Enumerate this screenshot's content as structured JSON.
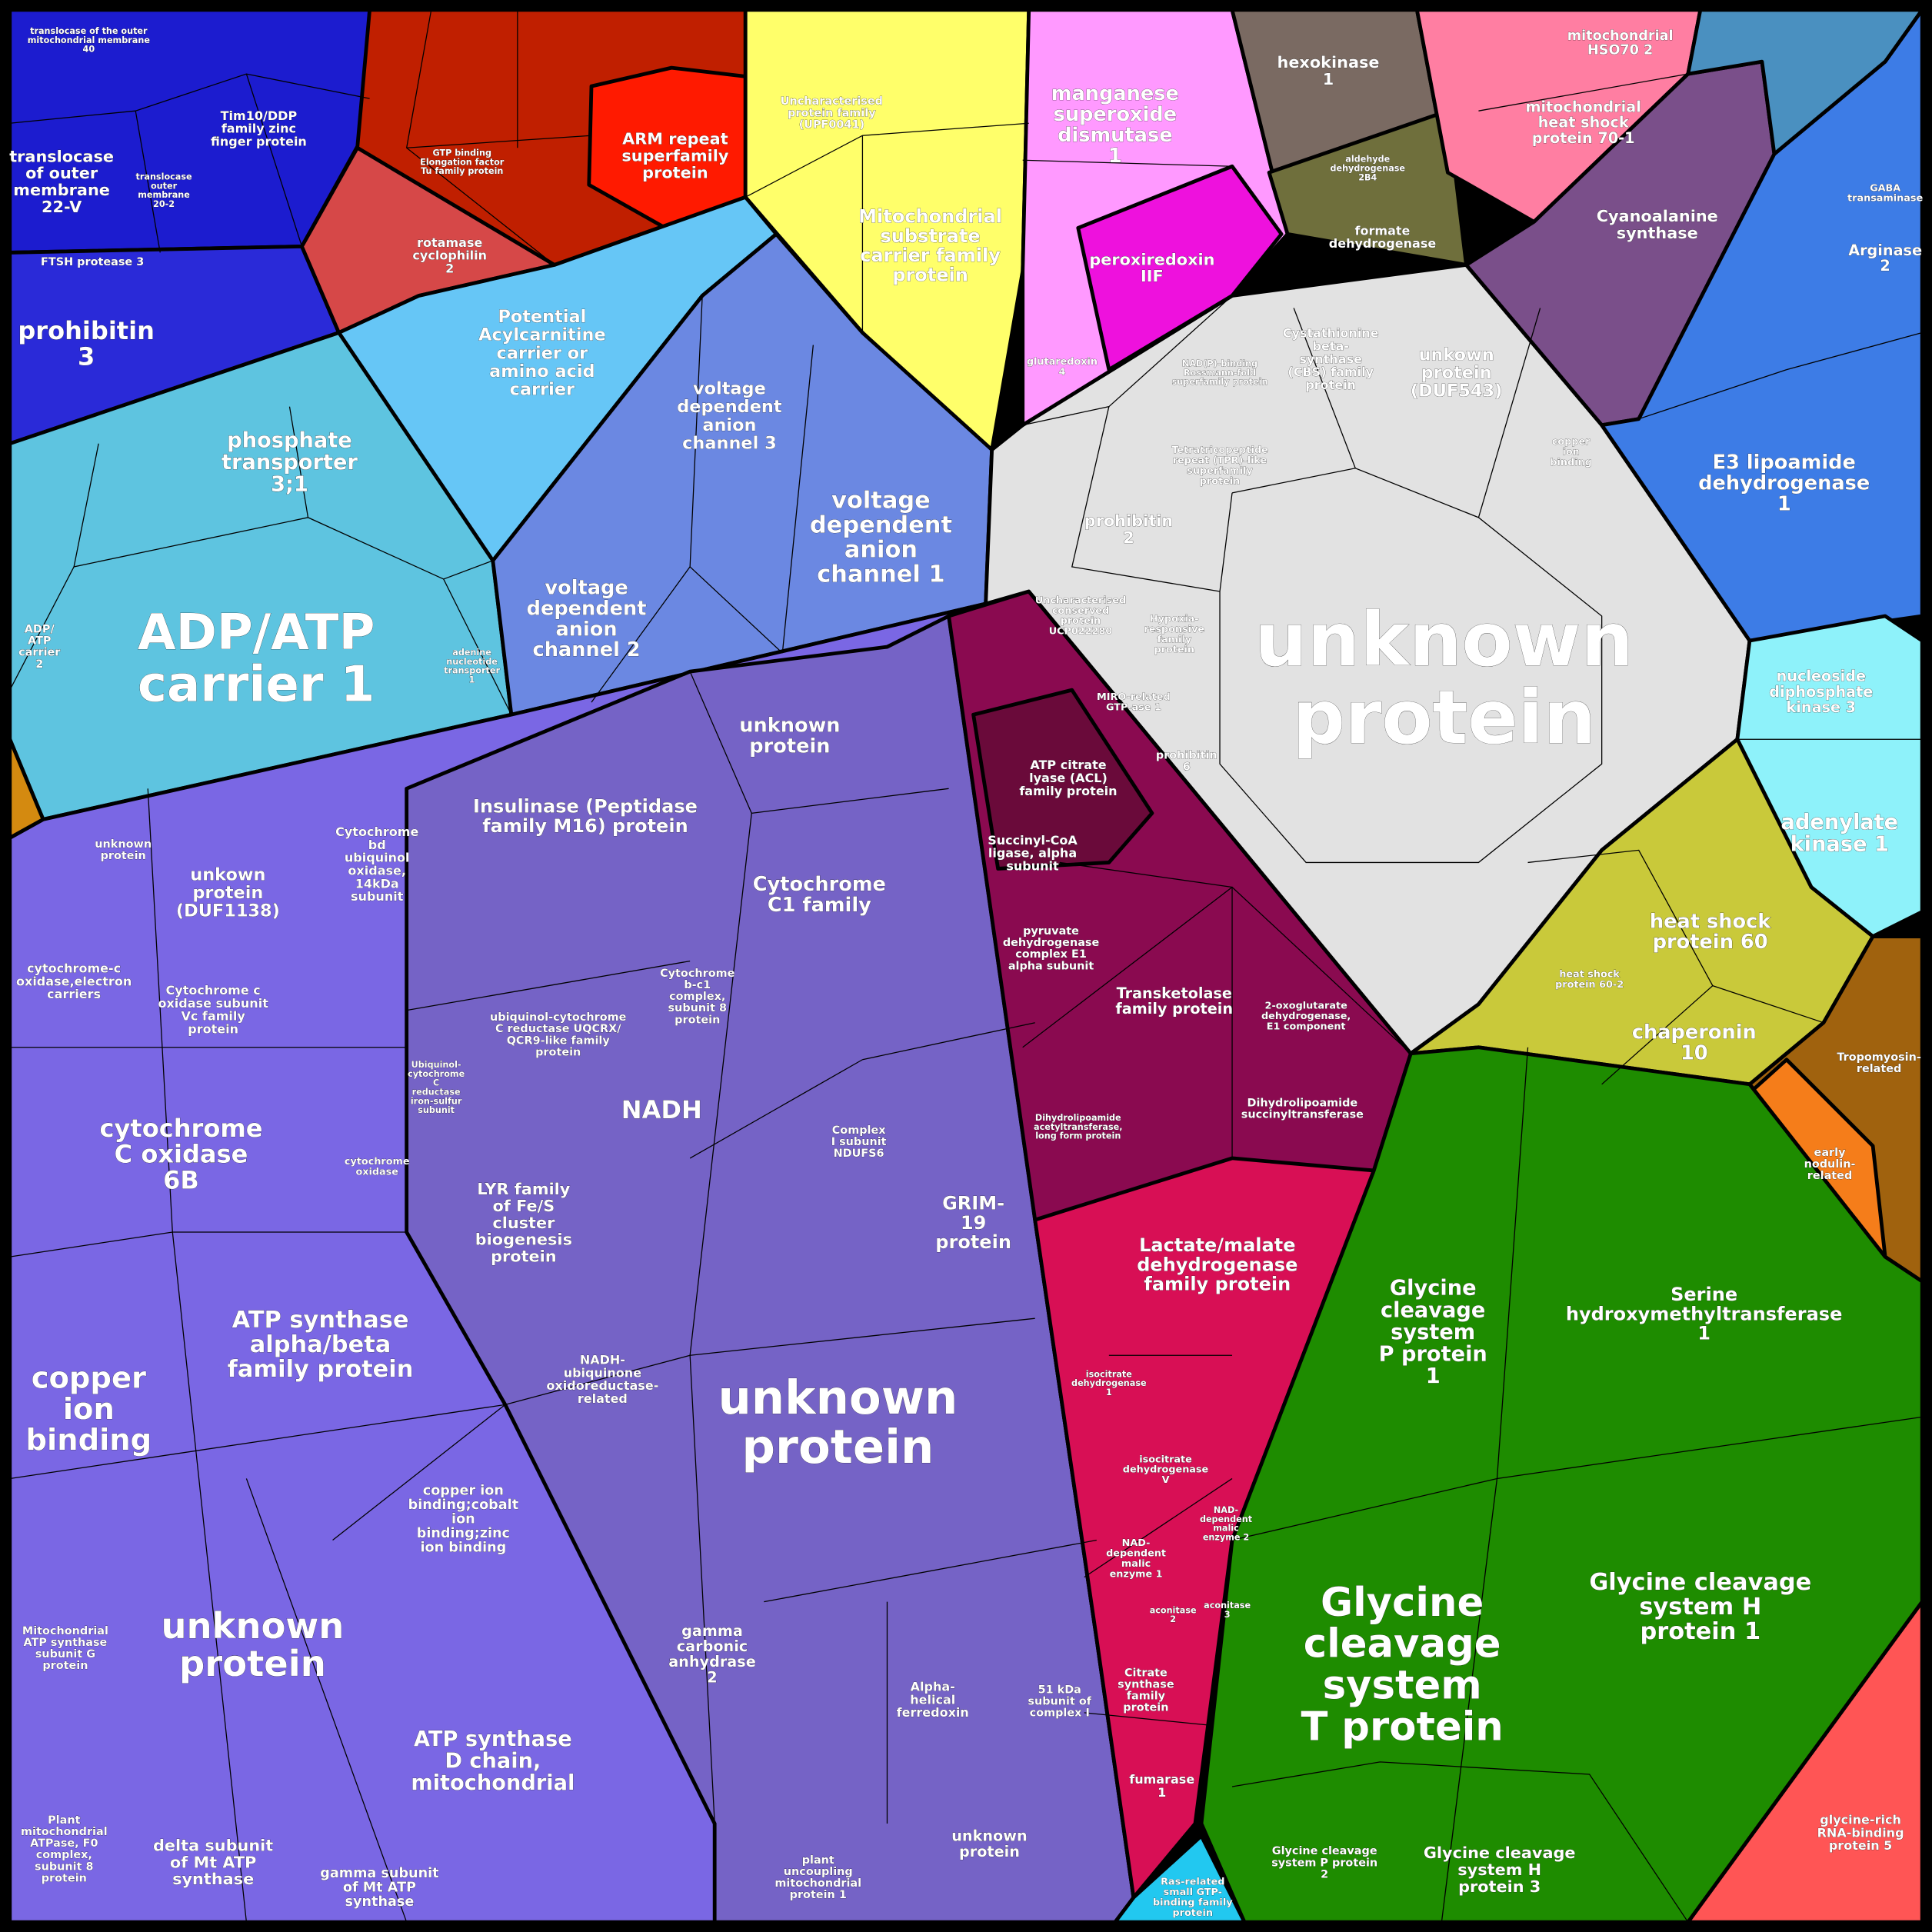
{
  "cells": [
    {
      "label": [
        "translocase",
        "of outer",
        "membrane",
        "22-V"
      ]
    },
    {
      "label": [
        "prohibitin",
        "3"
      ]
    },
    {
      "label": [
        "FTSH protease 3"
      ]
    },
    {
      "label": [
        "Tim10/DDP",
        "family zinc",
        "finger protein"
      ]
    },
    {
      "label": [
        "translocase",
        "outer",
        "membrane",
        "20-2"
      ]
    },
    {
      "label": [
        "translocase of the outer",
        "mitochondrial membrane",
        "40"
      ]
    },
    {
      "label": [
        "ARM repeat",
        "superfamily",
        "protein"
      ]
    },
    {
      "label": [
        "rotamase",
        "cyclophilin",
        "2"
      ]
    },
    {
      "label": [
        "GTP binding",
        "Elongation factor",
        "Tu family protein"
      ]
    },
    {
      "label": [
        "Uncharacterised",
        "protein family",
        "(UPF0041)"
      ]
    },
    {
      "label": [
        "Mitochondrial",
        "substrate",
        "carrier family",
        "protein"
      ]
    },
    {
      "label": [
        "manganese",
        "superoxide",
        "dismutase",
        "1"
      ]
    },
    {
      "label": [
        "peroxiredoxin",
        "IIF"
      ]
    },
    {
      "label": [
        "glutaredoxin",
        "4"
      ]
    },
    {
      "label": [
        "hexokinase",
        "1"
      ]
    },
    {
      "label": [
        "aldehyde",
        "dehydrogenase",
        "2B4"
      ]
    },
    {
      "label": [
        "formate",
        "dehydrogenase"
      ]
    },
    {
      "label": [
        "mitochondrial",
        "HSO70 2"
      ]
    },
    {
      "label": [
        "mitochondrial",
        "heat shock",
        "protein 70-1"
      ]
    },
    {
      "label": [
        "Cyanoalanine",
        "synthase"
      ]
    },
    {
      "label": [
        "Arginase",
        "2"
      ]
    },
    {
      "label": [
        "GABA",
        "transaminase"
      ]
    },
    {
      "label": [
        "E3 lipoamide",
        "dehydrogenase",
        "1"
      ]
    },
    {
      "label": [
        "nucleoside",
        "diphosphate",
        "kinase 3"
      ]
    },
    {
      "label": [
        "adenylate",
        "kinase 1"
      ]
    },
    {
      "label": [
        "heat shock",
        "protein 60"
      ]
    },
    {
      "label": [
        "chaperonin",
        "10"
      ]
    },
    {
      "label": [
        "heat shock",
        "protein 60-2"
      ]
    },
    {
      "label": [
        "Tropomyosin-",
        "related"
      ]
    },
    {
      "label": [
        "early",
        "nodulin-",
        "related"
      ]
    },
    {
      "label": [
        "unknown",
        "protein"
      ]
    },
    {
      "label": [
        "Cystathionine",
        "beta-",
        "synthase",
        "(CBS) family",
        "protein"
      ]
    },
    {
      "label": [
        "unkown",
        "protein",
        "(DUF543)"
      ]
    },
    {
      "label": [
        "prohibitin",
        "2"
      ]
    },
    {
      "label": [
        "Tetratricopeptide",
        "repeat (TPR)-like",
        "superfamily",
        "protein"
      ]
    },
    {
      "label": [
        "Uncharacterised",
        "conserved",
        "protein",
        "UCP022280"
      ]
    },
    {
      "label": [
        "Hypoxia-",
        "responsive",
        "family",
        "protein"
      ]
    },
    {
      "label": [
        "MIRO-related",
        "GTP-ase 1"
      ]
    },
    {
      "label": [
        "prohibitin",
        "6"
      ]
    },
    {
      "label": [
        "NAD(P)-binding",
        "Rossmann-fold",
        "superfamily protein"
      ]
    },
    {
      "label": [
        "copper",
        "ion",
        "binding"
      ]
    },
    {
      "label": [
        "ATP citrate",
        "lyase (ACL)",
        "family protein"
      ]
    },
    {
      "label": [
        "Succinyl-CoA",
        "ligase, alpha",
        "subunit"
      ]
    },
    {
      "label": [
        "pyruvate",
        "dehydrogenase",
        "complex E1",
        "alpha subunit"
      ]
    },
    {
      "label": [
        "Transketolase",
        "family protein"
      ]
    },
    {
      "label": [
        "2-oxoglutarate",
        "dehydrogenase,",
        "E1 component"
      ]
    },
    {
      "label": [
        "Dihydrolipoamide",
        "succinyltransferase"
      ]
    },
    {
      "label": [
        "Dihydrolipoamide",
        "acetyltransferase,",
        "long form protein"
      ]
    },
    {
      "label": [
        "Lactate/malate",
        "dehydrogenase",
        "family protein"
      ]
    },
    {
      "label": [
        "isocitrate",
        "dehydrogenase",
        "1"
      ]
    },
    {
      "label": [
        "isocitrate",
        "dehydrogenase",
        "V"
      ]
    },
    {
      "label": [
        "NAD-",
        "dependent",
        "malic",
        "enzyme 1"
      ]
    },
    {
      "label": [
        "NAD-",
        "dependent",
        "malic",
        "enzyme 2"
      ]
    },
    {
      "label": [
        "aconitase",
        "2"
      ]
    },
    {
      "label": [
        "aconitase",
        "3"
      ]
    },
    {
      "label": [
        "Citrate",
        "synthase",
        "family",
        "protein"
      ]
    },
    {
      "label": [
        "fumarase",
        "1"
      ]
    },
    {
      "label": [
        "Glycine",
        "cleavage",
        "system",
        "P protein",
        "1"
      ]
    },
    {
      "label": [
        "Serine",
        "hydroxymethyltransferase",
        "1"
      ]
    },
    {
      "label": [
        "Glycine",
        "cleavage",
        "system",
        "T protein"
      ]
    },
    {
      "label": [
        "Glycine cleavage",
        "system H",
        "protein 1"
      ]
    },
    {
      "label": [
        "Glycine cleavage",
        "system H",
        "protein 3"
      ]
    },
    {
      "label": [
        "Glycine cleavage",
        "system P protein",
        "2"
      ]
    },
    {
      "label": [
        "glycine-rich",
        "RNA-binding",
        "protein 5"
      ]
    },
    {
      "label": [
        "Ras-related",
        "small GTP-",
        "binding family",
        "protein"
      ]
    },
    {
      "label": [
        "phosphate",
        "transporter",
        "3;1"
      ]
    },
    {
      "label": [
        "ADP/ATP",
        "carrier 1"
      ]
    },
    {
      "label": [
        "Potential",
        "Acylcarnitine",
        "carrier or",
        "amino acid",
        "carrier"
      ]
    },
    {
      "label": [
        "ADP/",
        "ATP",
        "carrier",
        "2"
      ]
    },
    {
      "label": [
        "voltage",
        "dependent",
        "anion",
        "channel 3"
      ]
    },
    {
      "label": [
        "voltage",
        "dependent",
        "anion",
        "channel 1"
      ]
    },
    {
      "label": [
        "voltage",
        "dependent",
        "anion",
        "channel 2"
      ]
    },
    {
      "label": [
        "adenine",
        "nucleotide",
        "transporter",
        "1"
      ]
    },
    {
      "label": [
        "unknown",
        "protein"
      ]
    },
    {
      "label": [
        "Insulinase (Peptidase",
        "family M16) protein"
      ]
    },
    {
      "label": [
        "Cytochrome",
        "C1 family"
      ]
    },
    {
      "label": [
        "Cytochrome",
        "bd",
        "ubiquinol",
        "oxidase,",
        "14kDa",
        "subunit"
      ]
    },
    {
      "label": [
        "unkown",
        "protein",
        "(DUF1138)"
      ]
    },
    {
      "label": [
        "cytochrome-c",
        "oxidase,electron",
        "carriers"
      ]
    },
    {
      "label": [
        "Cytochrome c",
        "oxidase subunit",
        "Vc family",
        "protein"
      ]
    },
    {
      "label": [
        "cytochrome",
        "C oxidase",
        "6B"
      ]
    },
    {
      "label": [
        "NADH"
      ]
    },
    {
      "label": [
        "LYR family",
        "of Fe/S",
        "cluster",
        "biogenesis",
        "protein"
      ]
    },
    {
      "label": [
        "GRIM-",
        "19",
        "protein"
      ]
    },
    {
      "label": [
        "ATP synthase",
        "alpha/beta",
        "family protein"
      ]
    },
    {
      "label": [
        "copper",
        "ion",
        "binding"
      ]
    },
    {
      "label": [
        "unknown",
        "protein"
      ]
    },
    {
      "label": [
        "NADH-",
        "ubiquinone",
        "oxidoreductase-",
        "related"
      ]
    },
    {
      "label": [
        "unknown",
        "protein"
      ]
    },
    {
      "label": [
        "copper ion",
        "binding;cobalt",
        "ion",
        "binding;zinc",
        "ion binding"
      ]
    },
    {
      "label": [
        "gamma",
        "carbonic",
        "anhydrase",
        "2"
      ]
    },
    {
      "label": [
        "ATP synthase",
        "D chain,",
        "mitochondrial"
      ]
    },
    {
      "label": [
        "delta subunit",
        "of Mt ATP",
        "synthase"
      ]
    },
    {
      "label": [
        "gamma subunit",
        "of Mt ATP",
        "synthase"
      ]
    },
    {
      "label": [
        "Mitochondrial",
        "ATP synthase",
        "subunit G",
        "protein"
      ]
    },
    {
      "label": [
        "Plant",
        "mitochondrial",
        "ATPase, F0",
        "complex,",
        "subunit 8",
        "protein"
      ]
    },
    {
      "label": [
        "unknown",
        "protein"
      ]
    },
    {
      "label": [
        "plant",
        "uncoupling",
        "mitochondrial",
        "protein 1"
      ]
    },
    {
      "label": [
        "Alpha-",
        "helical",
        "ferredoxin"
      ]
    },
    {
      "label": [
        "51 kDa",
        "subunit of",
        "complex I"
      ]
    },
    {
      "label": [
        "Cytochrome",
        "b-c1",
        "complex,",
        "subunit 8",
        "protein"
      ]
    },
    {
      "label": [
        "ubiquinol-cytochrome",
        "C reductase UQCRX/",
        "QCR9-like family",
        "protein"
      ]
    },
    {
      "label": [
        "Complex",
        "I subunit",
        "NDUFS6"
      ]
    },
    {
      "label": [
        "cytochrome",
        "oxidase"
      ]
    },
    {
      "label": [
        "Ubiquinol-",
        "cytochrome",
        "C",
        "reductase",
        "iron-sulfur",
        "subunit"
      ]
    },
    {
      "label": [
        "unknown",
        "protein"
      ]
    }
  ]
}
